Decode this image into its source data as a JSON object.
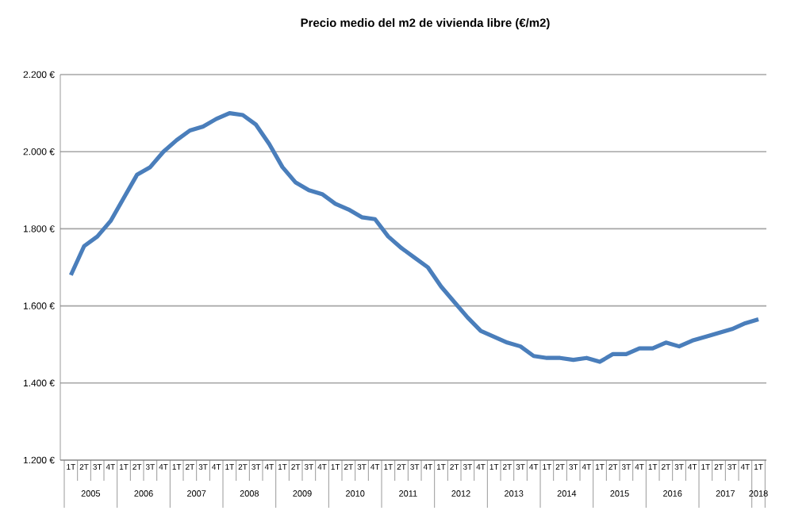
{
  "chart_data": {
    "type": "line",
    "title": "Precio medio del m2 de vivienda libre (€/m2)",
    "categories": [
      "1T",
      "2T",
      "3T",
      "4T",
      "1T",
      "2T",
      "3T",
      "4T",
      "1T",
      "2T",
      "3T",
      "4T",
      "1T",
      "2T",
      "3T",
      "4T",
      "1T",
      "2T",
      "3T",
      "4T",
      "1T",
      "2T",
      "3T",
      "4T",
      "1T",
      "2T",
      "3T",
      "4T",
      "1T",
      "2T",
      "3T",
      "4T",
      "1T",
      "2T",
      "3T",
      "4T",
      "1T",
      "2T",
      "3T",
      "4T",
      "1T",
      "2T",
      "3T",
      "4T",
      "1T",
      "2T",
      "3T",
      "4T",
      "1T",
      "2T",
      "3T",
      "4T",
      "1T"
    ],
    "series": [
      {
        "color": "#4a7ebb",
        "values": [
          1680,
          1755,
          1780,
          1820,
          1880,
          1940,
          1960,
          2000,
          2030,
          2055,
          2065,
          2085,
          2100,
          2095,
          2070,
          2020,
          1960,
          1920,
          1900,
          1890,
          1865,
          1850,
          1830,
          1825,
          1780,
          1750,
          1725,
          1700,
          1650,
          1610,
          1570,
          1535,
          1520,
          1505,
          1495,
          1470,
          1465,
          1465,
          1460,
          1465,
          1455,
          1475,
          1475,
          1490,
          1490,
          1505,
          1495,
          1510,
          1520,
          1530,
          1540,
          1555,
          1565
        ]
      }
    ],
    "annotations": [
      "2005",
      "2006",
      "2007",
      "2008",
      "2009",
      "2010",
      "2011",
      "2012",
      "2013",
      "2014",
      "2015",
      "2016",
      "2017",
      "2018"
    ],
    "ylim": [
      1200,
      2200
    ],
    "yticks": [
      {
        "value": 1200,
        "label": "1.200 €"
      },
      {
        "value": 1400,
        "label": "1.400 €"
      },
      {
        "value": 1600,
        "label": "1.600 €"
      },
      {
        "value": 1800,
        "label": "1.800 €"
      },
      {
        "value": 2000,
        "label": "2.000 €"
      },
      {
        "value": 2200,
        "label": "2.200 €"
      }
    ],
    "grid": "y",
    "marker": "none",
    "line_style": "solid"
  }
}
